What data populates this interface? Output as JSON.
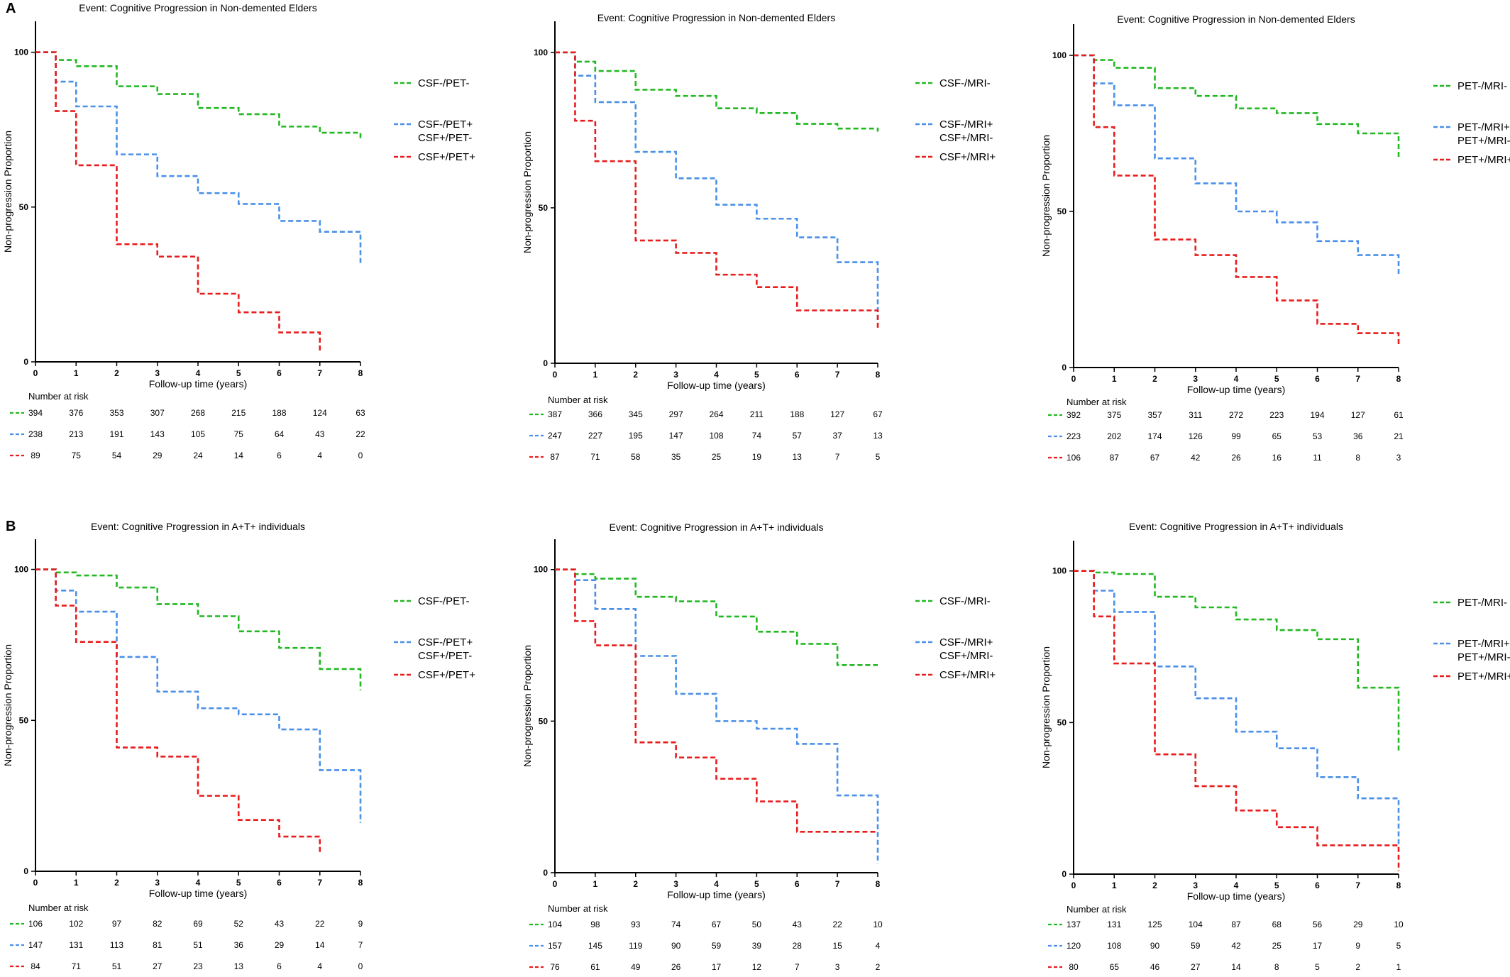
{
  "panel_labels": [
    "A",
    "B"
  ],
  "risk_table_title": "Number at risk",
  "colors": {
    "green": "#22b822",
    "blue": "#4a90e8",
    "red": "#e81c1c"
  },
  "chart_data": [
    {
      "type": "line",
      "step": true,
      "panel": "A",
      "title": "Event: Cognitive Progression in Non-demented Elders",
      "xlabel": "Follow-up time (years)",
      "ylabel": "Non-progression Proportion",
      "xlim": [
        0,
        8
      ],
      "ylim": [
        0,
        110
      ],
      "xticks": [
        0,
        1,
        2,
        3,
        4,
        5,
        6,
        7,
        8
      ],
      "yticks": [
        0,
        50,
        100
      ],
      "legend_placement": "top-right",
      "series": [
        {
          "name": "CSF-/PET-",
          "color": "green",
          "x": [
            0,
            0.5,
            1,
            2,
            3,
            4,
            5,
            6,
            7,
            8
          ],
          "y": [
            100,
            97.5,
            95.5,
            89,
            86.5,
            82,
            80,
            76,
            74,
            71.5
          ],
          "at_risk": [
            "394",
            "376",
            "353",
            "307",
            "268",
            "215",
            "188",
            "124",
            "63"
          ]
        },
        {
          "name": "CSF-/PET+\nCSF+/PET-",
          "color": "blue",
          "x": [
            0,
            0.5,
            1,
            2,
            3,
            4,
            5,
            6,
            7,
            8
          ],
          "y": [
            100,
            90.5,
            82.5,
            67,
            60,
            54.5,
            51,
            45.5,
            42,
            31.5
          ],
          "at_risk": [
            "238",
            "213",
            "191",
            "143",
            "105",
            "75",
            "64",
            "43",
            "22"
          ]
        },
        {
          "name": "CSF+/PET+",
          "color": "red",
          "x": [
            0,
            0.5,
            1,
            2,
            3,
            4,
            5,
            6,
            7
          ],
          "y": [
            100,
            81,
            63.5,
            38,
            34,
            22,
            16,
            9.5,
            3
          ],
          "at_risk": [
            "89",
            "75",
            "54",
            "29",
            "24",
            "14",
            "6",
            "4",
            "0"
          ]
        }
      ]
    },
    {
      "type": "line",
      "step": true,
      "panel": "A",
      "title": "Event: Cognitive Progression in Non-demented Elders",
      "xlabel": "Follow-up time (years)",
      "ylabel": "Non-progression Proportion",
      "xlim": [
        0,
        8
      ],
      "ylim": [
        0,
        110
      ],
      "xticks": [
        0,
        1,
        2,
        3,
        4,
        5,
        6,
        7,
        8
      ],
      "yticks": [
        0,
        50,
        100
      ],
      "legend_placement": "top-right",
      "series": [
        {
          "name": "CSF-/MRI-",
          "color": "green",
          "x": [
            0,
            0.5,
            1,
            2,
            3,
            4,
            5,
            6,
            7,
            8
          ],
          "y": [
            100,
            97,
            94,
            88,
            86,
            82,
            80.5,
            77,
            75.5,
            74.5
          ],
          "at_risk": [
            "387",
            "366",
            "345",
            "297",
            "264",
            "211",
            "188",
            "127",
            "67"
          ]
        },
        {
          "name": "CSF-/MRI+\nCSF+/MRI-",
          "color": "blue",
          "x": [
            0,
            0.5,
            1,
            2,
            3,
            4,
            5,
            6,
            7,
            8
          ],
          "y": [
            100,
            92.5,
            84,
            68,
            59.5,
            51,
            46.5,
            40.5,
            32.5,
            13.5
          ],
          "at_risk": [
            "247",
            "227",
            "195",
            "147",
            "108",
            "74",
            "57",
            "37",
            "13"
          ]
        },
        {
          "name": "CSF+/MRI+",
          "color": "red",
          "x": [
            0,
            0.5,
            1,
            2,
            3,
            4,
            5,
            6,
            7,
            8
          ],
          "y": [
            100,
            78,
            65,
            39.5,
            35.5,
            28.5,
            24.5,
            17,
            17,
            11
          ],
          "at_risk": [
            "87",
            "71",
            "58",
            "35",
            "25",
            "19",
            "13",
            "7",
            "5"
          ]
        }
      ]
    },
    {
      "type": "line",
      "step": true,
      "panel": "A",
      "title": "Event: Cognitive Progression in Non-demented Elders",
      "xlabel": "Follow-up time (years)",
      "ylabel": "Non-progression Proportion",
      "xlim": [
        0,
        8
      ],
      "ylim": [
        0,
        110
      ],
      "xticks": [
        0,
        1,
        2,
        3,
        4,
        5,
        6,
        7,
        8
      ],
      "yticks": [
        0,
        50,
        100
      ],
      "legend_placement": "top-right",
      "series": [
        {
          "name": "PET-/MRI-",
          "color": "green",
          "x": [
            0,
            0.5,
            1,
            2,
            3,
            4,
            5,
            6,
            7,
            8
          ],
          "y": [
            100,
            98.5,
            96,
            89.5,
            87,
            83,
            81.5,
            78,
            75,
            67
          ],
          "at_risk": [
            "392",
            "375",
            "357",
            "311",
            "272",
            "223",
            "194",
            "127",
            "61"
          ]
        },
        {
          "name": "PET-/MRI+\nPET+/MRI-",
          "color": "blue",
          "x": [
            0,
            0.5,
            1,
            2,
            3,
            4,
            5,
            6,
            7,
            8
          ],
          "y": [
            100,
            91,
            84,
            67,
            59,
            50,
            46.5,
            40.5,
            36,
            30
          ],
          "at_risk": [
            "223",
            "202",
            "174",
            "126",
            "99",
            "65",
            "53",
            "36",
            "21"
          ]
        },
        {
          "name": "PET+/MRI+",
          "color": "red",
          "x": [
            0,
            0.5,
            1,
            2,
            3,
            4,
            5,
            6,
            7,
            8
          ],
          "y": [
            100,
            77,
            61.5,
            41,
            36,
            29,
            21.5,
            14,
            11,
            7
          ],
          "at_risk": [
            "106",
            "87",
            "67",
            "42",
            "26",
            "16",
            "11",
            "8",
            "3"
          ]
        }
      ]
    },
    {
      "type": "line",
      "step": true,
      "panel": "B",
      "title": "Event: Cognitive Progression in A+T+ individuals",
      "xlabel": "Follow-up time (years)",
      "ylabel": "Non-progression Proportion",
      "xlim": [
        0,
        8
      ],
      "ylim": [
        0,
        110
      ],
      "xticks": [
        0,
        1,
        2,
        3,
        4,
        5,
        6,
        7,
        8
      ],
      "yticks": [
        0,
        50,
        100
      ],
      "legend_placement": "top-right",
      "series": [
        {
          "name": "CSF-/PET-",
          "color": "green",
          "x": [
            0,
            0.5,
            1,
            2,
            3,
            4,
            5,
            6,
            7,
            8
          ],
          "y": [
            100,
            99,
            98,
            94,
            88.5,
            84.5,
            79.5,
            74,
            67,
            60
          ],
          "at_risk": [
            "106",
            "102",
            "97",
            "82",
            "69",
            "52",
            "43",
            "22",
            "9"
          ]
        },
        {
          "name": "CSF-/PET+\nCSF+/PET-",
          "color": "blue",
          "x": [
            0,
            0.5,
            1,
            2,
            3,
            4,
            5,
            6,
            7,
            8
          ],
          "y": [
            100,
            93,
            86,
            71,
            59.5,
            54,
            52,
            47,
            33.5,
            16
          ],
          "at_risk": [
            "147",
            "131",
            "113",
            "81",
            "51",
            "36",
            "29",
            "14",
            "7"
          ]
        },
        {
          "name": "CSF+/PET+",
          "color": "red",
          "x": [
            0,
            0.5,
            1,
            2,
            3,
            4,
            5,
            6,
            7
          ],
          "y": [
            100,
            88,
            76,
            41,
            38,
            25,
            17,
            11.5,
            5.5
          ],
          "at_risk": [
            "84",
            "71",
            "51",
            "27",
            "23",
            "13",
            "6",
            "4",
            "0"
          ]
        }
      ]
    },
    {
      "type": "line",
      "step": true,
      "panel": "B",
      "title": "Event: Cognitive Progression in A+T+ individuals",
      "xlabel": "Follow-up time (years)",
      "ylabel": "Non-progression Proportion",
      "xlim": [
        0,
        8
      ],
      "ylim": [
        0,
        110
      ],
      "xticks": [
        0,
        1,
        2,
        3,
        4,
        5,
        6,
        7,
        8
      ],
      "yticks": [
        0,
        50,
        100
      ],
      "legend_placement": "top-right",
      "series": [
        {
          "name": "CSF-/MRI-",
          "color": "green",
          "x": [
            0,
            0.5,
            1,
            2,
            3,
            4,
            5,
            6,
            7,
            8
          ],
          "y": [
            100,
            98.5,
            97,
            91,
            89.5,
            84.5,
            79.5,
            75.5,
            68.5,
            68.5
          ],
          "at_risk": [
            "104",
            "98",
            "93",
            "74",
            "67",
            "50",
            "43",
            "22",
            "10"
          ]
        },
        {
          "name": "CSF-/MRI+\nCSF+/MRI-",
          "color": "blue",
          "x": [
            0,
            0.5,
            1,
            2,
            3,
            4,
            5,
            6,
            7,
            8
          ],
          "y": [
            100,
            96.5,
            87,
            71.5,
            59,
            50,
            47.5,
            42.5,
            25.5,
            3
          ],
          "at_risk": [
            "157",
            "145",
            "119",
            "90",
            "59",
            "39",
            "28",
            "15",
            "4"
          ]
        },
        {
          "name": "CSF+/MRI+",
          "color": "red",
          "x": [
            0,
            0.5,
            1,
            2,
            3,
            4,
            5,
            6,
            7,
            8
          ],
          "y": [
            100,
            83,
            75,
            43,
            38,
            31,
            23.5,
            13.5,
            13.5,
            13.5
          ],
          "at_risk": [
            "76",
            "61",
            "49",
            "26",
            "17",
            "12",
            "7",
            "3",
            "2"
          ]
        }
      ]
    },
    {
      "type": "line",
      "step": true,
      "panel": "B",
      "title": "Event: Cognitive Progression in A+T+ individuals",
      "xlabel": "Follow-up time (years)",
      "ylabel": "Non-progression Proportion",
      "xlim": [
        0,
        8
      ],
      "ylim": [
        0,
        110
      ],
      "xticks": [
        0,
        1,
        2,
        3,
        4,
        5,
        6,
        7,
        8
      ],
      "yticks": [
        0,
        50,
        100
      ],
      "legend_placement": "top-right",
      "series": [
        {
          "name": "PET-/MRI-",
          "color": "green",
          "x": [
            0,
            0.5,
            1,
            2,
            3,
            4,
            5,
            6,
            7,
            8
          ],
          "y": [
            100,
            99.5,
            99,
            91.5,
            88,
            84,
            80.5,
            77.5,
            61.5,
            40.5
          ],
          "at_risk": [
            "137",
            "131",
            "125",
            "104",
            "87",
            "68",
            "56",
            "29",
            "10"
          ]
        },
        {
          "name": "PET-/MRI+\nPET+/MRI-",
          "color": "blue",
          "x": [
            0,
            0.5,
            1,
            2,
            3,
            4,
            5,
            6,
            7,
            8
          ],
          "y": [
            100,
            93.5,
            86.5,
            68.5,
            58,
            47,
            41.5,
            32,
            25,
            9
          ],
          "at_risk": [
            "120",
            "108",
            "90",
            "59",
            "42",
            "25",
            "17",
            "9",
            "5"
          ]
        },
        {
          "name": "PET+/MRI+",
          "color": "red",
          "x": [
            0,
            0.5,
            1,
            2,
            3,
            4,
            5,
            6,
            7,
            8
          ],
          "y": [
            100,
            85,
            69.5,
            39.5,
            29,
            21,
            15.5,
            9.5,
            9.5,
            1
          ],
          "at_risk": [
            "80",
            "65",
            "46",
            "27",
            "14",
            "8",
            "5",
            "2",
            "1"
          ]
        }
      ]
    }
  ]
}
